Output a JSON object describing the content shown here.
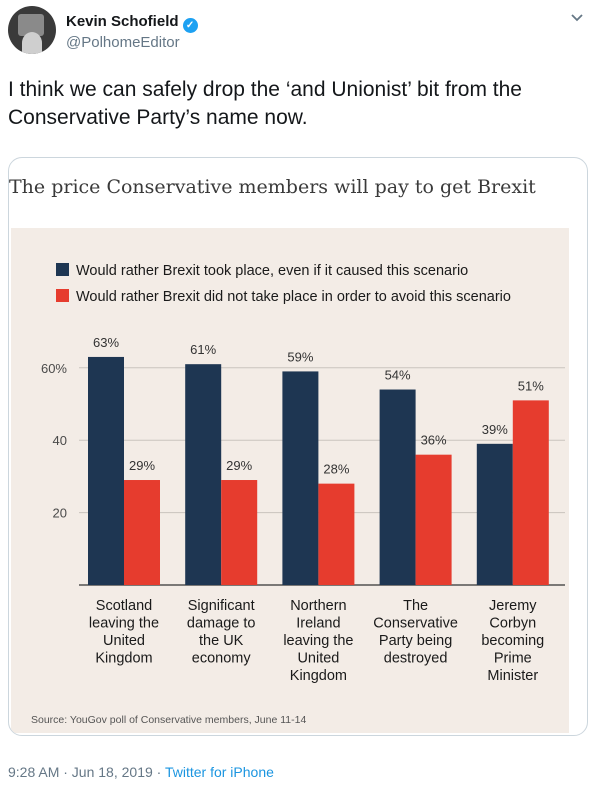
{
  "tweet": {
    "author_name": "Kevin Schofield",
    "handle": "@PolhomeEditor",
    "text": "I think we can safely drop the ‘and Unionist’ bit from the Conservative Party’s name now.",
    "timestamp": "9:28 AM · Jun 18, 2019 · ",
    "source": "Twitter for iPhone",
    "verified_icon": "✓",
    "menu_icon": "chevron-down-icon"
  },
  "chart_data": {
    "type": "bar",
    "title": "The price Conservative members will pay to get Brexit",
    "categories": [
      [
        "Scotland",
        "leaving the",
        "United",
        "Kingdom"
      ],
      [
        "Significant",
        "damage to",
        "the UK",
        "economy"
      ],
      [
        "Northern",
        "Ireland",
        "leaving the",
        "United",
        "Kingdom"
      ],
      [
        "The",
        "Conservative",
        "Party being",
        "destroyed"
      ],
      [
        "Jeremy",
        "Corbyn",
        "becoming",
        "Prime",
        "Minister"
      ]
    ],
    "series": [
      {
        "name": "Would rather Brexit took place, even if it caused this scenario",
        "color": "#1e3652",
        "values": [
          63,
          61,
          59,
          54,
          39
        ]
      },
      {
        "name": "Would rather Brexit did not take place in order to avoid this scenario",
        "color": "#e63c2e",
        "values": [
          29,
          29,
          28,
          36,
          51
        ]
      }
    ],
    "y_ticks": [
      "20",
      "40",
      "60%"
    ],
    "y_tick_values": [
      20,
      40,
      60
    ],
    "ylim": [
      0,
      70
    ],
    "value_suffix": "%",
    "grid": true,
    "source": "Source: YouGov poll of Conservative members, June 11-14"
  }
}
